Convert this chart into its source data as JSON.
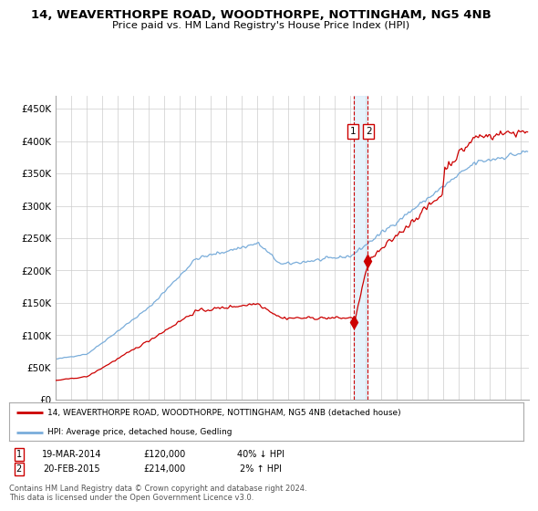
{
  "title": "14, WEAVERTHORPE ROAD, WOODTHORPE, NOTTINGHAM, NG5 4NB",
  "subtitle": "Price paid vs. HM Land Registry's House Price Index (HPI)",
  "ylabel_ticks": [
    "£0",
    "£50K",
    "£100K",
    "£150K",
    "£200K",
    "£250K",
    "£300K",
    "£350K",
    "£400K",
    "£450K"
  ],
  "ytick_values": [
    0,
    50000,
    100000,
    150000,
    200000,
    250000,
    300000,
    350000,
    400000,
    450000
  ],
  "ylim": [
    0,
    470000
  ],
  "xlim_start": 1995.0,
  "xlim_end": 2025.5,
  "hpi_color": "#7aadda",
  "price_color": "#cc0000",
  "transaction1_year": 2014.21,
  "transaction1_price_y": 120000,
  "transaction2_year": 2015.12,
  "transaction2_price_y": 214000,
  "transaction1_date": "19-MAR-2014",
  "transaction1_price": 120000,
  "transaction1_pct": "40% ↓ HPI",
  "transaction2_date": "20-FEB-2015",
  "transaction2_price": 214000,
  "transaction2_pct": "2% ↑ HPI",
  "legend_label_red": "14, WEAVERTHORPE ROAD, WOODTHORPE, NOTTINGHAM, NG5 4NB (detached house)",
  "legend_label_blue": "HPI: Average price, detached house, Gedling",
  "footnote": "Contains HM Land Registry data © Crown copyright and database right 2024.\nThis data is licensed under the Open Government Licence v3.0.",
  "background_color": "#ffffff",
  "grid_color": "#cccccc",
  "shade_color": "#d0e8f8"
}
